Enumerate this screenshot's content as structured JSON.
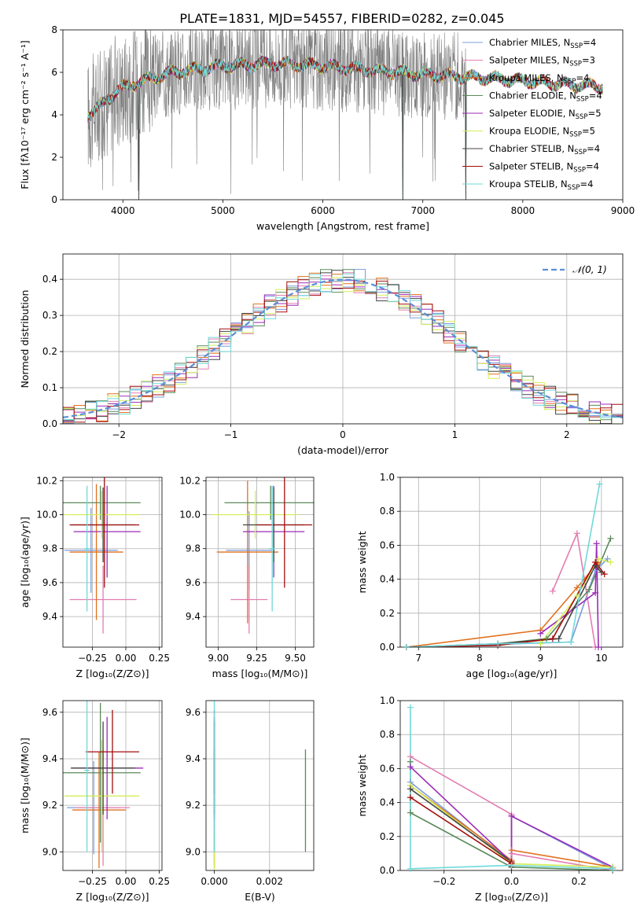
{
  "page_title": "PLATE=1831, MJD=54557, FIBERID=0282, z=0.045",
  "colors": {
    "Chabrier MILES": "#7a9cde",
    "Salpeter MILES": "#e37db0",
    "Kroupa MILES": "#e2711d",
    "Chabrier ELODIE": "#5a8a5a",
    "Salpeter ELODIE": "#9b2bb6",
    "Kroupa ELODIE": "#d4ee57",
    "Chabrier STELIB": "#444444",
    "Salpeter STELIB": "#a30e0e",
    "Kroupa STELIB": "#6fd9d9",
    "observed": "#808080",
    "normal": "#5b8fd6"
  },
  "legend": {
    "entries": [
      {
        "name": "Chabrier MILES",
        "nssp": "4"
      },
      {
        "name": "Salpeter MILES",
        "nssp": "3"
      },
      {
        "name": "Kroupa MILES",
        "nssp": "4"
      },
      {
        "name": "Chabrier ELODIE",
        "nssp": "4"
      },
      {
        "name": "Salpeter ELODIE",
        "nssp": "5"
      },
      {
        "name": "Kroupa ELODIE",
        "nssp": "5"
      },
      {
        "name": "Chabrier STELIB",
        "nssp": "4"
      },
      {
        "name": "Salpeter STELIB",
        "nssp": "4"
      },
      {
        "name": "Kroupa STELIB",
        "nssp": "4"
      }
    ],
    "nssp_prefix": "N",
    "nssp_sub": "SSP"
  },
  "chart_data": [
    {
      "id": "spectrum",
      "type": "line",
      "xlabel": "wavelength [Angstrom, rest frame]",
      "ylabel": "Flux [fλ10⁻¹⁷ erg cm⁻² s⁻¹ A⁻¹]",
      "xlim": [
        3400,
        9000
      ],
      "ylim": [
        0,
        8
      ],
      "xticks": [
        4000,
        5000,
        6000,
        7000,
        8000,
        9000
      ],
      "yticks": [
        0,
        2,
        4,
        6,
        8
      ],
      "observed_range": [
        3650,
        7430
      ],
      "model_range": [
        3650,
        8800
      ],
      "flux_trend": [
        [
          3650,
          4.0
        ],
        [
          3800,
          4.5
        ],
        [
          3950,
          5.2
        ],
        [
          4200,
          5.6
        ],
        [
          4500,
          6.0
        ],
        [
          5000,
          6.3
        ],
        [
          5500,
          6.4
        ],
        [
          6000,
          6.3
        ],
        [
          6500,
          6.1
        ],
        [
          7000,
          5.9
        ],
        [
          7400,
          5.8
        ],
        [
          8000,
          5.6
        ],
        [
          8500,
          5.4
        ],
        [
          8800,
          5.35
        ]
      ],
      "drops": [
        [
          4160,
          0
        ],
        [
          6800,
          0
        ],
        [
          7430,
          0
        ]
      ]
    },
    {
      "id": "residuals",
      "type": "histogram",
      "xlabel": "(data-model)/error",
      "ylabel": "Normed distribution",
      "xlim": [
        -2.5,
        2.5
      ],
      "ylim": [
        0,
        0.47
      ],
      "xticks": [
        -2,
        -1,
        0,
        1,
        2
      ],
      "yticks": [
        0.0,
        0.1,
        0.2,
        0.3,
        0.4
      ],
      "bin_width": 0.1,
      "legend": "𝒩(0, 1)",
      "reference": {
        "type": "normal",
        "mean": 0,
        "sigma": 1
      }
    },
    {
      "id": "age_vs_z",
      "type": "errorbar",
      "xlabel": "Z [log₁₀(Z/Z⊙)]",
      "ylabel": "age  [log₁₀(age/yr)]",
      "xlim": [
        -0.47,
        0.27
      ],
      "ylim": [
        9.22,
        10.22
      ],
      "xticks": [
        -0.25,
        0.0,
        0.25
      ],
      "yticks": [
        9.4,
        9.6,
        9.8,
        10.0,
        10.2
      ],
      "points": [
        {
          "series": "Chabrier MILES",
          "x": -0.26,
          "y": 9.79,
          "xerr": 0.2,
          "yerr": 0.25
        },
        {
          "series": "Salpeter MILES",
          "x": -0.17,
          "y": 9.5,
          "xerr": 0.25,
          "yerr": 0.2
        },
        {
          "series": "Kroupa MILES",
          "x": -0.22,
          "y": 9.78,
          "xerr": 0.2,
          "yerr": 0.4
        },
        {
          "series": "Chabrier ELODIE",
          "x": -0.19,
          "y": 10.07,
          "xerr": 0.3,
          "yerr": 0.1
        },
        {
          "series": "Salpeter ELODIE",
          "x": -0.14,
          "y": 9.9,
          "xerr": 0.25,
          "yerr": 0.27
        },
        {
          "series": "Kroupa ELODIE",
          "x": -0.18,
          "y": 10.0,
          "xerr": 0.28,
          "yerr": 0.14
        },
        {
          "series": "Chabrier STELIB",
          "x": -0.17,
          "y": 9.94,
          "xerr": 0.24,
          "yerr": 0.22
        },
        {
          "series": "Salpeter STELIB",
          "x": -0.16,
          "y": 9.94,
          "xerr": 0.26,
          "yerr": 0.37
        },
        {
          "series": "Kroupa STELIB",
          "x": -0.29,
          "y": 9.8,
          "xerr": 0.02,
          "yerr": 0.37
        }
      ]
    },
    {
      "id": "age_vs_mass",
      "type": "errorbar",
      "xlabel": "mass [log₁₀(M/M⊙)]",
      "ylabel": "",
      "xlim": [
        8.92,
        9.62
      ],
      "ylim": [
        9.22,
        10.22
      ],
      "xticks": [
        9.0,
        9.25,
        9.5
      ],
      "yticks": [
        9.4,
        9.6,
        9.8,
        10.0,
        10.2
      ],
      "points": [
        {
          "series": "Chabrier MILES",
          "x": 9.2,
          "y": 9.79,
          "xerr": 0.15,
          "yerr": 0.23
        },
        {
          "series": "Salpeter MILES",
          "x": 9.2,
          "y": 9.5,
          "xerr": 0.12,
          "yerr": 0.2
        },
        {
          "series": "Kroupa MILES",
          "x": 9.19,
          "y": 9.78,
          "xerr": 0.2,
          "yerr": 0.42
        },
        {
          "series": "Chabrier ELODIE",
          "x": 9.34,
          "y": 10.07,
          "xerr": 0.3,
          "yerr": 0.1
        },
        {
          "series": "Salpeter ELODIE",
          "x": 9.36,
          "y": 9.9,
          "xerr": 0.2,
          "yerr": 0.27
        },
        {
          "series": "Kroupa ELODIE",
          "x": 9.24,
          "y": 10.0,
          "xerr": 0.28,
          "yerr": 0.14
        },
        {
          "series": "Chabrier STELIB",
          "x": 9.36,
          "y": 9.94,
          "xerr": 0.2,
          "yerr": 0.22
        },
        {
          "series": "Salpeter STELIB",
          "x": 9.43,
          "y": 9.94,
          "xerr": 0.18,
          "yerr": 0.37
        },
        {
          "series": "Kroupa STELIB",
          "x": 9.35,
          "y": 9.8,
          "xerr": 0.02,
          "yerr": 0.37
        }
      ]
    },
    {
      "id": "weight_vs_age",
      "type": "line",
      "xlabel": "age  [log₁₀(age/yr)]",
      "ylabel": "mass weight",
      "xlim": [
        6.7,
        10.35
      ],
      "ylim": [
        0,
        1
      ],
      "xticks": [
        7,
        8,
        9,
        10
      ],
      "yticks": [
        0.0,
        0.2,
        0.4,
        0.6,
        0.8,
        1.0
      ],
      "series": [
        {
          "name": "Chabrier MILES",
          "x": [
            6.8,
            9.5,
            9.9,
            10.1
          ],
          "y": [
            0.0,
            0.03,
            0.45,
            0.52
          ]
        },
        {
          "name": "Salpeter MILES",
          "x": [
            9.2,
            9.6,
            9.9
          ],
          "y": [
            0.33,
            0.67,
            0.0
          ]
        },
        {
          "name": "Kroupa MILES",
          "x": [
            6.8,
            9.0,
            9.6,
            9.95
          ],
          "y": [
            0.0,
            0.1,
            0.35,
            0.5
          ]
        },
        {
          "name": "Chabrier ELODIE",
          "x": [
            8.3,
            9.1,
            9.8,
            10.15
          ],
          "y": [
            0.02,
            0.05,
            0.34,
            0.64
          ]
        },
        {
          "name": "Salpeter ELODIE",
          "x": [
            9.0,
            9.9,
            9.92,
            9.95
          ],
          "y": [
            0.08,
            0.32,
            0.61,
            0.0
          ]
        },
        {
          "name": "Kroupa ELODIE",
          "x": [
            9.0,
            9.6,
            9.95,
            10.15
          ],
          "y": [
            0.02,
            0.3,
            0.52,
            0.5
          ]
        },
        {
          "name": "Chabrier STELIB",
          "x": [
            6.8,
            8.3,
            9.3,
            9.9,
            10.0
          ],
          "y": [
            0.0,
            0.02,
            0.05,
            0.48,
            0.44
          ]
        },
        {
          "name": "Salpeter STELIB",
          "x": [
            6.8,
            8.3,
            9.2,
            9.9,
            10.05
          ],
          "y": [
            0.0,
            0.01,
            0.05,
            0.5,
            0.43
          ]
        },
        {
          "name": "Kroupa STELIB",
          "x": [
            6.8,
            8.3,
            9.5,
            9.97
          ],
          "y": [
            0.0,
            0.02,
            0.03,
            0.96
          ]
        }
      ]
    },
    {
      "id": "mass_vs_z",
      "type": "errorbar",
      "xlabel": "Z [log₁₀(Z/Z⊙)]",
      "ylabel": "mass [log₁₀(M/M⊙)]",
      "xlim": [
        -0.47,
        0.27
      ],
      "ylim": [
        8.92,
        9.65
      ],
      "xticks": [
        -0.25,
        0.0,
        0.25
      ],
      "yticks": [
        9.0,
        9.2,
        9.4,
        9.6
      ],
      "points": [
        {
          "series": "Chabrier MILES",
          "x": -0.24,
          "y": 9.19,
          "xerr": 0.2,
          "yerr": 0.2
        },
        {
          "series": "Salpeter MILES",
          "x": -0.17,
          "y": 9.19,
          "xerr": 0.2,
          "yerr": 0.25
        },
        {
          "series": "Kroupa MILES",
          "x": -0.2,
          "y": 9.18,
          "xerr": 0.2,
          "yerr": 0.25
        },
        {
          "series": "Chabrier ELODIE",
          "x": -0.19,
          "y": 9.34,
          "xerr": 0.3,
          "yerr": 0.3
        },
        {
          "series": "Salpeter ELODIE",
          "x": -0.14,
          "y": 9.36,
          "xerr": 0.27,
          "yerr": 0.22
        },
        {
          "series": "Kroupa ELODIE",
          "x": -0.18,
          "y": 9.24,
          "xerr": 0.28,
          "yerr": 0.24
        },
        {
          "series": "Chabrier STELIB",
          "x": -0.17,
          "y": 9.36,
          "xerr": 0.24,
          "yerr": 0.2
        },
        {
          "series": "Salpeter STELIB",
          "x": -0.1,
          "y": 9.43,
          "xerr": 0.2,
          "yerr": 0.18
        },
        {
          "series": "Kroupa STELIB",
          "x": -0.29,
          "y": 9.35,
          "xerr": 0.02,
          "yerr": 0.35
        }
      ]
    },
    {
      "id": "mass_vs_ebv",
      "type": "errorbar",
      "xlabel": "E(B-V)",
      "ylabel": "",
      "xlim": [
        -0.0003,
        0.0036
      ],
      "ylim": [
        8.92,
        9.65
      ],
      "xticks": [
        0.0,
        0.002
      ],
      "yticks": [
        9.0,
        9.2,
        9.4,
        9.6
      ],
      "points": [
        {
          "series": "Chabrier MILES",
          "x": 0.0,
          "y": 9.19,
          "xerr": 0,
          "yerr": 0.2
        },
        {
          "series": "Salpeter MILES",
          "x": 0.0,
          "y": 9.19,
          "xerr": 0,
          "yerr": 0.25
        },
        {
          "series": "Kroupa MILES",
          "x": 0.0,
          "y": 9.18,
          "xerr": 0,
          "yerr": 0.25
        },
        {
          "series": "Chabrier ELODIE",
          "x": 0.0033,
          "y": 9.22,
          "xerr": 0,
          "yerr": 0.22
        },
        {
          "series": "Salpeter ELODIE",
          "x": 0.0,
          "y": 9.36,
          "xerr": 0,
          "yerr": 0.22
        },
        {
          "series": "Kroupa ELODIE",
          "x": 0.0,
          "y": 9.0,
          "xerr": 0,
          "yerr": 0.1
        },
        {
          "series": "Chabrier STELIB",
          "x": 0.0,
          "y": 9.36,
          "xerr": 0,
          "yerr": 0.2
        },
        {
          "series": "Salpeter STELIB",
          "x": 0.0,
          "y": 9.43,
          "xerr": 0,
          "yerr": 0.18
        },
        {
          "series": "Kroupa STELIB",
          "x": 0.0,
          "y": 9.35,
          "xerr": 0,
          "yerr": 0.35
        }
      ]
    },
    {
      "id": "weight_vs_z",
      "type": "line",
      "xlabel": "Z [log₁₀(Z/Z⊙)]",
      "ylabel": "mass weight",
      "xlim": [
        -0.33,
        0.33
      ],
      "ylim": [
        0,
        1
      ],
      "xticks": [
        -0.2,
        0.0,
        0.2
      ],
      "yticks": [
        0.0,
        0.2,
        0.4,
        0.6,
        0.8,
        1.0
      ],
      "series": [
        {
          "name": "Chabrier MILES",
          "x": [
            -0.3,
            0.0,
            0.0,
            0.3
          ],
          "y": [
            0.52,
            0.05,
            0.32,
            0.01
          ]
        },
        {
          "name": "Salpeter MILES",
          "x": [
            -0.3,
            0.0,
            0.0,
            0.3
          ],
          "y": [
            0.67,
            0.33,
            0.1,
            0.0
          ]
        },
        {
          "name": "Kroupa MILES",
          "x": [
            -0.3,
            0.0,
            0.0,
            0.3
          ],
          "y": [
            0.5,
            0.06,
            0.12,
            0.02
          ]
        },
        {
          "name": "Chabrier ELODIE",
          "x": [
            -0.3,
            -0.3,
            0.0,
            0.3
          ],
          "y": [
            0.64,
            0.34,
            0.02,
            0.0
          ]
        },
        {
          "name": "Salpeter ELODIE",
          "x": [
            -0.3,
            0.0,
            0.0,
            0.3
          ],
          "y": [
            0.61,
            0.05,
            0.32,
            0.02
          ]
        },
        {
          "name": "Kroupa ELODIE",
          "x": [
            -0.3,
            0.0,
            0.3
          ],
          "y": [
            0.5,
            0.04,
            0.02
          ]
        },
        {
          "name": "Chabrier STELIB",
          "x": [
            -0.3,
            0.0,
            0.0
          ],
          "y": [
            0.48,
            0.05,
            0.02
          ]
        },
        {
          "name": "Salpeter STELIB",
          "x": [
            -0.3,
            0.0,
            0.0
          ],
          "y": [
            0.43,
            0.04,
            0.05
          ]
        },
        {
          "name": "Kroupa STELIB",
          "x": [
            -0.3,
            -0.3,
            0.0,
            0.3
          ],
          "y": [
            0.96,
            0.01,
            0.03,
            0.01
          ]
        }
      ]
    }
  ]
}
